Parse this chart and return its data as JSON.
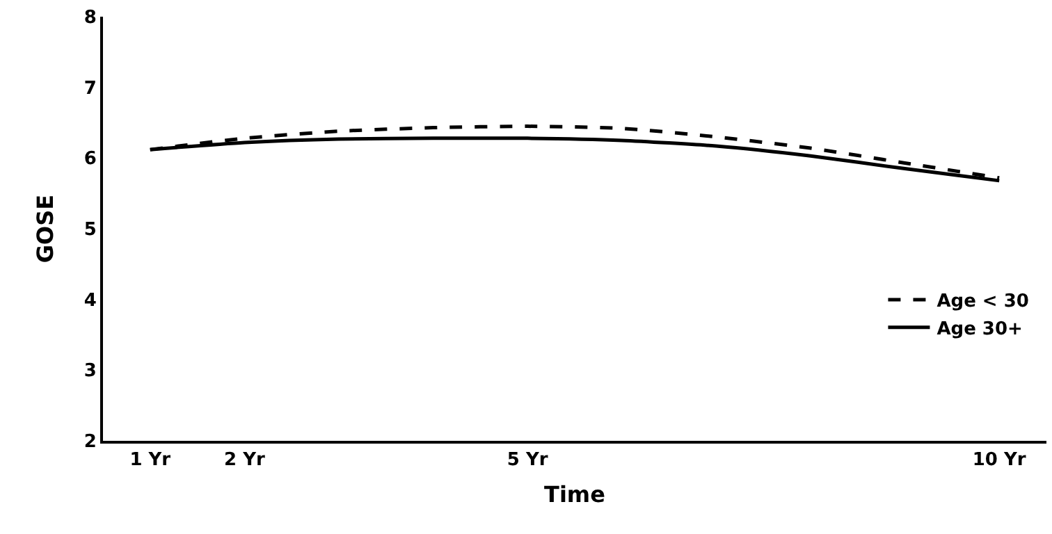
{
  "chart_data": {
    "type": "line",
    "xlabel": "Time",
    "ylabel": "GOSE",
    "x": [
      1,
      2,
      3,
      4,
      5,
      6,
      7,
      8,
      9,
      10
    ],
    "series": [
      {
        "name": "Age < 30",
        "color": "#000000",
        "line_style": "dashed",
        "values": [
          6.12,
          6.28,
          6.38,
          6.43,
          6.45,
          6.42,
          6.3,
          6.14,
          5.93,
          5.72
        ]
      },
      {
        "name": "Age 30+",
        "color": "#000000",
        "line_style": "solid",
        "values": [
          6.12,
          6.22,
          6.27,
          6.28,
          6.28,
          6.25,
          6.17,
          6.03,
          5.85,
          5.68
        ]
      }
    ],
    "xlim": [
      0.5,
      10.5
    ],
    "xticks": [
      {
        "value": 1,
        "label": "1 Yr"
      },
      {
        "value": 2,
        "label": "2 Yr"
      },
      {
        "value": 5,
        "label": "5 Yr"
      },
      {
        "value": 10,
        "label": "10 Yr"
      }
    ],
    "ylim": [
      2,
      8
    ],
    "yticks": [
      2,
      3,
      4,
      5,
      6,
      7,
      8
    ],
    "grid": false,
    "legend": "bottom right",
    "marker": "none"
  }
}
